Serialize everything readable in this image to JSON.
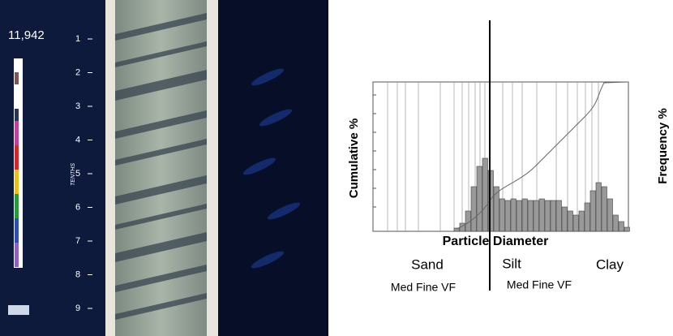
{
  "photo": {
    "depth_label": "11,942",
    "scale_ticks": [
      "1",
      "2",
      "3",
      "4",
      "5",
      "6",
      "7",
      "8",
      "9"
    ],
    "scale_unit": "TENTHS"
  },
  "chart": {
    "y_left_label": "Cumulative %",
    "y_right_label": "Frequency %",
    "x_label": "Particle Diameter",
    "classes": [
      {
        "name": "Sand",
        "subclasses": "Med Fine VF"
      },
      {
        "name": "Silt",
        "subclasses": "Med Fine VF"
      },
      {
        "name": "Clay"
      }
    ]
  }
}
